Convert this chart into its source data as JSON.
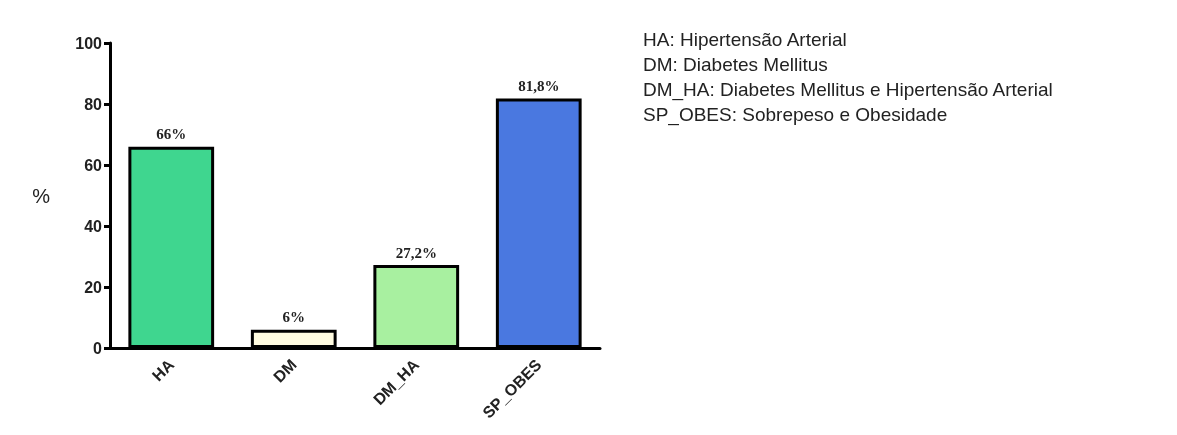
{
  "chart_data": {
    "type": "bar",
    "ylabel": "%",
    "categories": [
      "HA",
      "DM",
      "DM_HA",
      "SP_OBES"
    ],
    "values": [
      66,
      6,
      27.2,
      81.8
    ],
    "colors": [
      "#3fd68f",
      "#fffbe0",
      "#a8f0a0",
      "#4a78e0"
    ],
    "value_labels": [
      "66%",
      "6%",
      "27,2%",
      "81,8%"
    ],
    "ylim": [
      0,
      100
    ],
    "yticks": [
      0,
      20,
      40,
      60,
      80,
      100
    ],
    "grid": false,
    "annotations": [
      "HA: Hipertensão Arterial",
      "DM: Diabetes Mellitus",
      "DM_HA: Diabetes Mellitus e Hipertensão Arterial",
      "SP_OBES: Sobrepeso e Obesidade"
    ]
  }
}
